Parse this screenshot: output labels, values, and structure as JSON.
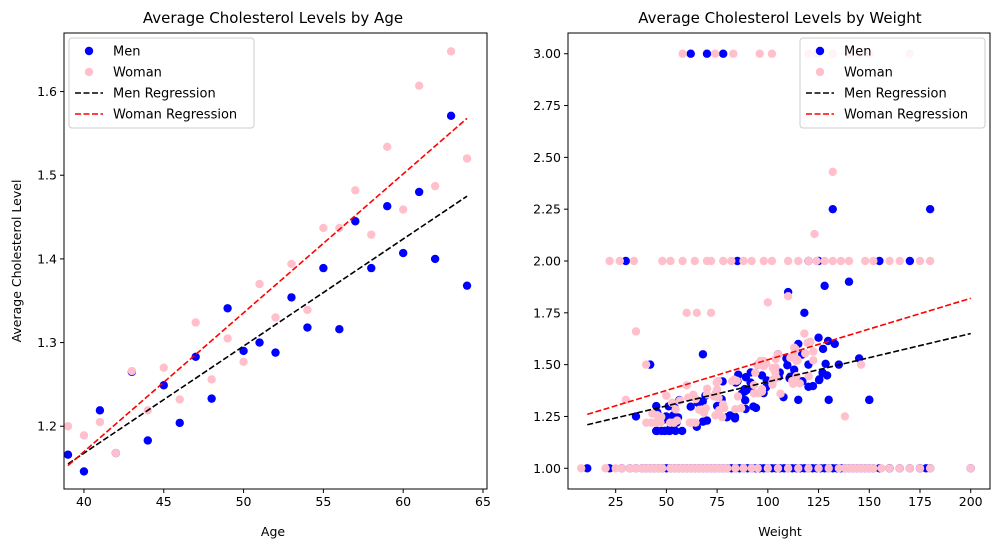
{
  "chart_data": [
    {
      "type": "scatter",
      "title": "Average Cholesterol Levels by Age",
      "xlabel": "Age",
      "ylabel": "Average Cholesterol Level",
      "xlim": [
        38.75,
        65.25
      ],
      "ylim": [
        1.125,
        1.67
      ],
      "xticks": [
        40,
        45,
        50,
        55,
        60,
        65
      ],
      "yticks": [
        1.2,
        1.3,
        1.4,
        1.5,
        1.6
      ],
      "ytick_decimals": 1,
      "grid": false,
      "legend": "top-left",
      "series": [
        {
          "name": "Men",
          "kind": "scatter",
          "color": "#0000ff",
          "x": [
            39,
            40,
            41,
            42,
            43,
            44,
            45,
            46,
            47,
            48,
            49,
            50,
            51,
            52,
            53,
            54,
            55,
            56,
            57,
            58,
            59,
            60,
            61,
            62,
            63,
            64
          ],
          "y": [
            1.166,
            1.146,
            1.219,
            1.168,
            1.265,
            1.183,
            1.249,
            1.204,
            1.283,
            1.233,
            1.341,
            1.29,
            1.3,
            1.288,
            1.354,
            1.318,
            1.389,
            1.316,
            1.445,
            1.389,
            1.463,
            1.407,
            1.48,
            1.4,
            1.571,
            1.368
          ]
        },
        {
          "name": "Woman",
          "kind": "scatter",
          "color": "#ffc0cb",
          "x": [
            39,
            40,
            41,
            42,
            43,
            44,
            45,
            46,
            47,
            48,
            49,
            50,
            51,
            52,
            53,
            54,
            55,
            56,
            57,
            58,
            59,
            60,
            61,
            62,
            63,
            64
          ],
          "y": [
            1.2,
            1.189,
            1.205,
            1.168,
            1.266,
            1.219,
            1.27,
            1.232,
            1.324,
            1.256,
            1.305,
            1.277,
            1.37,
            1.33,
            1.394,
            1.339,
            1.437,
            1.437,
            1.482,
            1.429,
            1.534,
            1.459,
            1.607,
            1.487,
            1.648,
            1.52
          ]
        },
        {
          "name": "Men Regression",
          "kind": "line",
          "dash": "dashed",
          "color": "#000000",
          "x": [
            39,
            64
          ],
          "y": [
            1.155,
            1.475
          ]
        },
        {
          "name": "Woman Regression",
          "kind": "line",
          "dash": "dashed",
          "color": "#ff0000",
          "x": [
            39,
            64
          ],
          "y": [
            1.153,
            1.568
          ]
        }
      ]
    },
    {
      "type": "scatter",
      "title": "Average Cholesterol Levels by Weight",
      "xlabel": "Weight",
      "ylabel": "",
      "xlim": [
        1.5,
        209.5
      ],
      "ylim": [
        0.9,
        3.1
      ],
      "xticks": [
        25,
        50,
        75,
        100,
        125,
        150,
        175,
        200
      ],
      "yticks": [
        1.0,
        1.25,
        1.5,
        1.75,
        2.0,
        2.25,
        2.5,
        2.75,
        3.0
      ],
      "ytick_decimals": 2,
      "grid": false,
      "legend": "top-right",
      "series": [
        {
          "name": "Men",
          "kind": "scatter",
          "color": "#0000ff",
          "x": [
            11,
            22,
            28,
            30,
            32,
            35,
            38,
            40,
            42,
            44,
            46,
            48,
            50,
            52,
            54,
            56,
            58,
            60,
            62,
            64,
            66,
            68,
            70,
            72,
            74,
            76,
            78,
            80,
            82,
            84,
            86,
            88,
            90,
            92,
            94,
            96,
            98,
            100,
            102,
            104,
            106,
            108,
            110,
            112,
            114,
            116,
            118,
            120,
            122,
            124,
            126,
            128,
            130,
            132,
            134,
            136,
            138,
            140,
            142,
            144,
            146,
            148,
            150,
            152,
            155,
            160,
            165,
            170,
            175,
            178,
            180,
            200,
            35,
            45,
            55,
            65,
            70,
            75,
            85,
            95,
            105,
            115,
            120,
            125,
            135,
            145,
            150,
            155,
            160,
            170,
            175,
            180,
            62,
            70,
            78,
            85,
            120,
            132,
            110,
            125,
            118,
            128,
            133,
            140,
            150,
            68,
            45,
            42,
            115,
            130
          ],
          "y": [
            1.0,
            1.0,
            1.0,
            2.0,
            1.0,
            1.0,
            1.0,
            1.0,
            1.0,
            1.0,
            1.0,
            1.0,
            1.0,
            1.0,
            1.0,
            1.0,
            1.0,
            1.0,
            1.0,
            1.0,
            1.0,
            1.0,
            1.0,
            1.0,
            1.0,
            1.0,
            1.0,
            1.0,
            1.0,
            1.0,
            1.0,
            1.0,
            1.0,
            1.0,
            1.0,
            1.0,
            1.0,
            1.0,
            1.0,
            1.0,
            1.0,
            1.0,
            1.0,
            1.0,
            1.0,
            1.0,
            1.0,
            1.0,
            1.0,
            1.0,
            1.0,
            1.0,
            1.0,
            1.0,
            1.0,
            1.0,
            1.0,
            1.0,
            1.0,
            1.0,
            1.0,
            1.0,
            1.0,
            1.0,
            1.0,
            1.0,
            1.0,
            1.0,
            1.0,
            1.0,
            1.0,
            1.0,
            1.25,
            1.3,
            1.22,
            1.2,
            1.23,
            1.3,
            1.42,
            1.5,
            1.55,
            1.6,
            1.5,
            1.63,
            1.5,
            1.53,
            1.33,
            2.0,
            1.0,
            2.0,
            1.0,
            2.25,
            3.0,
            3.0,
            3.0,
            2.0,
            2.0,
            2.25,
            1.85,
            2.0,
            1.75,
            1.88,
            1.6,
            1.9,
            1.33,
            1.55,
            1.18,
            1.5,
            1.33,
            1.33
          ],
          "cluster": {
            "x_from": 45,
            "x_to": 130,
            "y_from": 1.18,
            "y_to": 1.62,
            "count": 70
          }
        },
        {
          "name": "Woman",
          "kind": "scatter",
          "color": "#ffc0cb",
          "x": [
            8,
            20,
            25,
            28,
            32,
            35,
            38,
            40,
            42,
            44,
            46,
            48,
            52,
            54,
            56,
            58,
            60,
            62,
            64,
            66,
            68,
            70,
            72,
            74,
            76,
            78,
            80,
            84,
            88,
            92,
            95,
            100,
            105,
            110,
            115,
            120,
            125,
            130,
            135,
            138,
            140,
            142,
            144,
            146,
            148,
            150,
            152,
            156,
            160,
            165,
            170,
            175,
            180,
            200,
            22,
            27,
            34,
            48,
            52,
            58,
            64,
            70,
            72,
            78,
            82,
            88,
            92,
            98,
            102,
            110,
            115,
            120,
            124,
            128,
            132,
            136,
            140,
            148,
            152,
            160,
            175,
            180,
            58,
            74,
            83,
            96,
            102,
            120,
            124,
            132,
            140,
            145,
            150,
            170,
            60,
            65,
            72,
            100,
            110,
            165,
            30,
            35,
            40,
            50,
            60,
            75,
            95,
            105,
            118,
            123,
            132,
            138,
            146
          ],
          "y": [
            1.0,
            1.0,
            1.0,
            1.0,
            1.0,
            1.0,
            1.0,
            1.0,
            1.0,
            1.0,
            1.0,
            1.0,
            1.0,
            1.0,
            1.0,
            1.0,
            1.0,
            1.0,
            1.0,
            1.0,
            1.0,
            1.0,
            1.0,
            1.0,
            1.0,
            1.0,
            1.0,
            1.0,
            1.0,
            1.0,
            1.0,
            1.0,
            1.0,
            1.0,
            1.0,
            1.0,
            1.0,
            1.0,
            1.0,
            1.0,
            1.0,
            1.0,
            1.0,
            1.0,
            1.0,
            1.0,
            1.0,
            1.0,
            1.0,
            1.0,
            1.0,
            1.0,
            1.0,
            1.0,
            2.0,
            2.0,
            2.0,
            2.0,
            2.0,
            2.0,
            2.0,
            2.0,
            2.0,
            2.0,
            2.0,
            2.0,
            2.0,
            2.0,
            2.0,
            2.0,
            2.0,
            2.0,
            2.0,
            2.0,
            2.0,
            2.0,
            2.0,
            2.0,
            2.0,
            2.0,
            2.0,
            2.0,
            3.0,
            3.0,
            3.0,
            3.0,
            3.0,
            3.0,
            3.0,
            3.0,
            3.0,
            3.0,
            3.0,
            3.0,
            1.75,
            1.75,
            1.75,
            1.8,
            1.83,
            2.0,
            1.33,
            1.66,
            1.5,
            1.35,
            1.4,
            1.38,
            1.5,
            1.55,
            1.65,
            2.13,
            2.43,
            1.25,
            1.5
          ],
          "cluster": {
            "x_from": 40,
            "x_to": 125,
            "y_from": 1.22,
            "y_to": 1.75,
            "count": 80
          }
        },
        {
          "name": "Men Regression",
          "kind": "line",
          "dash": "dashed",
          "color": "#000000",
          "x": [
            11,
            200
          ],
          "y": [
            1.21,
            1.65
          ]
        },
        {
          "name": "Woman Regression",
          "kind": "line",
          "dash": "dashed",
          "color": "#ff0000",
          "x": [
            11,
            200
          ],
          "y": [
            1.26,
            1.82
          ]
        }
      ]
    }
  ]
}
